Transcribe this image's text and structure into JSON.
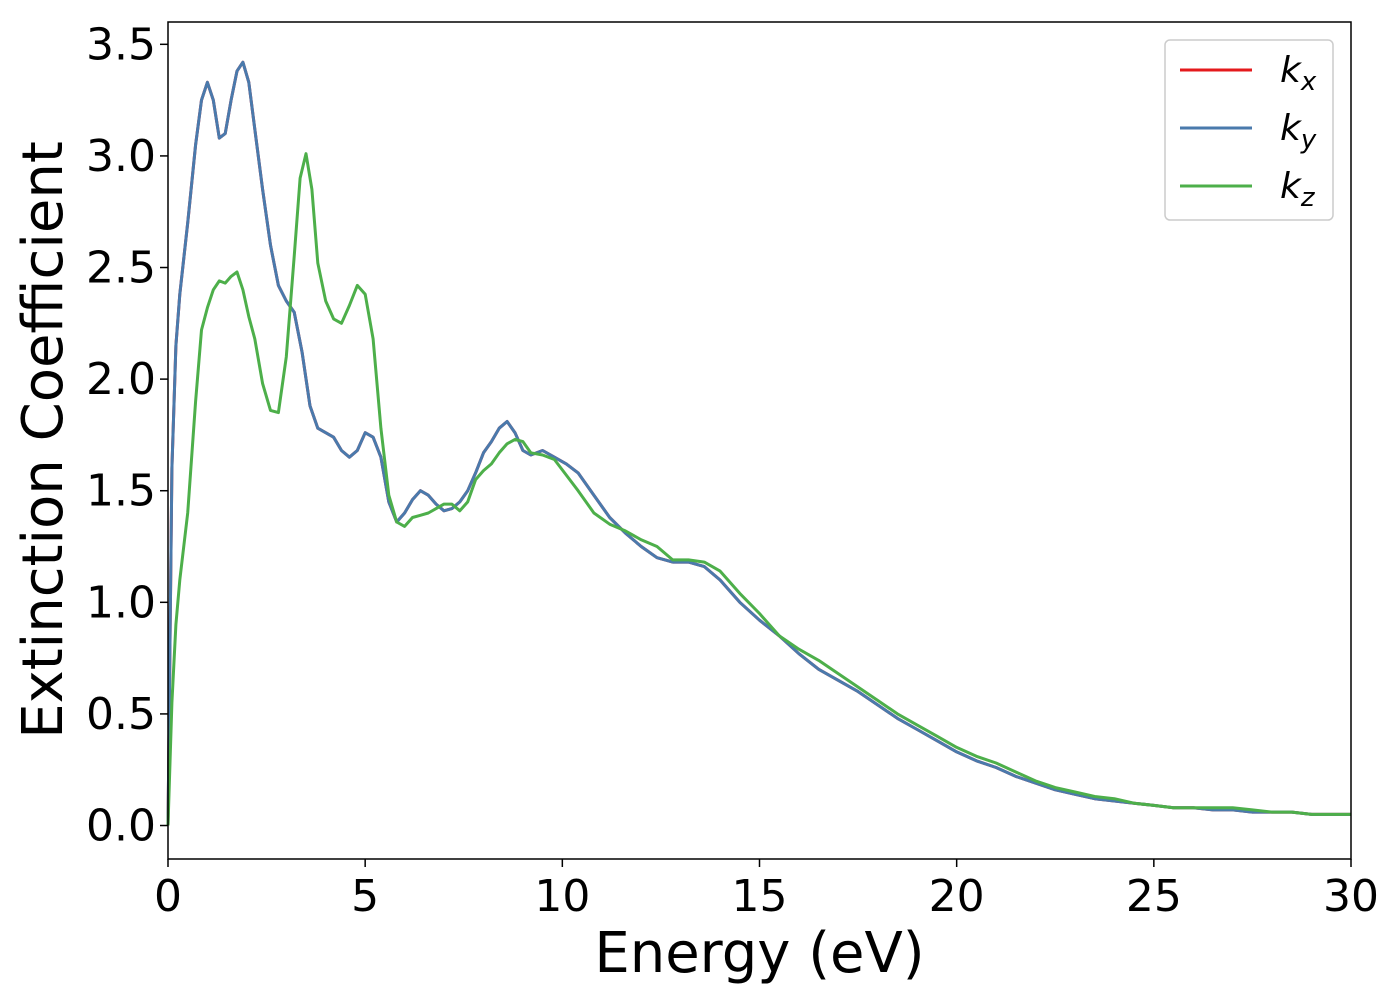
{
  "chart_data": {
    "type": "line",
    "title": "",
    "xlabel": "Energy (eV)",
    "ylabel": "Extinction Coefficient",
    "xlim": [
      0,
      30
    ],
    "ylim": [
      -0.15,
      3.6
    ],
    "xticks": [
      0,
      5,
      10,
      15,
      20,
      25,
      30
    ],
    "xtick_labels": [
      "0",
      "5",
      "10",
      "15",
      "20",
      "25",
      "30"
    ],
    "yticks": [
      0,
      0.5,
      1.0,
      1.5,
      2.0,
      2.5,
      3.0,
      3.5
    ],
    "ytick_labels": [
      "0.0",
      "0.5",
      "1.0",
      "1.5",
      "2.0",
      "2.5",
      "3.0",
      "3.5"
    ],
    "grid": false,
    "legend_position": "top-right",
    "series": [
      {
        "name": "k",
        "subscript": "x",
        "color": "#e41a1c",
        "x": [
          0,
          0.1,
          0.2,
          0.3,
          0.5,
          0.7,
          0.85,
          1.0,
          1.15,
          1.3,
          1.45,
          1.6,
          1.75,
          1.9,
          2.05,
          2.2,
          2.4,
          2.6,
          2.8,
          3.0,
          3.2,
          3.4,
          3.6,
          3.8,
          4.0,
          4.2,
          4.4,
          4.6,
          4.8,
          5.0,
          5.2,
          5.4,
          5.6,
          5.8,
          6.0,
          6.2,
          6.4,
          6.6,
          6.8,
          7.0,
          7.2,
          7.4,
          7.6,
          7.8,
          8.0,
          8.2,
          8.4,
          8.6,
          8.8,
          9.0,
          9.2,
          9.5,
          9.8,
          10.1,
          10.4,
          10.8,
          11.2,
          11.6,
          12.0,
          12.4,
          12.8,
          13.2,
          13.6,
          14.0,
          14.5,
          15.0,
          15.5,
          16.0,
          16.5,
          17.0,
          17.5,
          18.0,
          18.5,
          19.0,
          19.5,
          20.0,
          20.5,
          21.0,
          21.5,
          22.0,
          22.5,
          23.0,
          23.5,
          24.0,
          24.5,
          25.0,
          25.5,
          26.0,
          26.5,
          27.0,
          27.5,
          28.0,
          28.5,
          29.0,
          29.5,
          30.0
        ],
        "values": [
          0.0,
          1.6,
          2.15,
          2.38,
          2.7,
          3.05,
          3.25,
          3.33,
          3.25,
          3.08,
          3.1,
          3.25,
          3.38,
          3.42,
          3.33,
          3.12,
          2.85,
          2.6,
          2.42,
          2.35,
          2.3,
          2.12,
          1.88,
          1.78,
          1.76,
          1.74,
          1.68,
          1.65,
          1.68,
          1.76,
          1.74,
          1.65,
          1.45,
          1.36,
          1.4,
          1.46,
          1.5,
          1.48,
          1.44,
          1.41,
          1.42,
          1.45,
          1.5,
          1.58,
          1.67,
          1.72,
          1.78,
          1.81,
          1.76,
          1.68,
          1.66,
          1.68,
          1.65,
          1.62,
          1.58,
          1.48,
          1.38,
          1.31,
          1.25,
          1.2,
          1.18,
          1.18,
          1.16,
          1.1,
          1.0,
          0.92,
          0.85,
          0.77,
          0.7,
          0.65,
          0.6,
          0.54,
          0.48,
          0.43,
          0.38,
          0.33,
          0.29,
          0.26,
          0.22,
          0.19,
          0.16,
          0.14,
          0.12,
          0.11,
          0.1,
          0.09,
          0.08,
          0.08,
          0.07,
          0.07,
          0.06,
          0.06,
          0.06,
          0.05,
          0.05,
          0.05
        ]
      },
      {
        "name": "k",
        "subscript": "y",
        "color": "#4a7aac",
        "x": [
          0,
          0.1,
          0.2,
          0.3,
          0.5,
          0.7,
          0.85,
          1.0,
          1.15,
          1.3,
          1.45,
          1.6,
          1.75,
          1.9,
          2.05,
          2.2,
          2.4,
          2.6,
          2.8,
          3.0,
          3.2,
          3.4,
          3.6,
          3.8,
          4.0,
          4.2,
          4.4,
          4.6,
          4.8,
          5.0,
          5.2,
          5.4,
          5.6,
          5.8,
          6.0,
          6.2,
          6.4,
          6.6,
          6.8,
          7.0,
          7.2,
          7.4,
          7.6,
          7.8,
          8.0,
          8.2,
          8.4,
          8.6,
          8.8,
          9.0,
          9.2,
          9.5,
          9.8,
          10.1,
          10.4,
          10.8,
          11.2,
          11.6,
          12.0,
          12.4,
          12.8,
          13.2,
          13.6,
          14.0,
          14.5,
          15.0,
          15.5,
          16.0,
          16.5,
          17.0,
          17.5,
          18.0,
          18.5,
          19.0,
          19.5,
          20.0,
          20.5,
          21.0,
          21.5,
          22.0,
          22.5,
          23.0,
          23.5,
          24.0,
          24.5,
          25.0,
          25.5,
          26.0,
          26.5,
          27.0,
          27.5,
          28.0,
          28.5,
          29.0,
          29.5,
          30.0
        ],
        "values": [
          0.0,
          1.6,
          2.15,
          2.38,
          2.7,
          3.05,
          3.25,
          3.33,
          3.25,
          3.08,
          3.1,
          3.25,
          3.38,
          3.42,
          3.33,
          3.12,
          2.85,
          2.6,
          2.42,
          2.35,
          2.3,
          2.12,
          1.88,
          1.78,
          1.76,
          1.74,
          1.68,
          1.65,
          1.68,
          1.76,
          1.74,
          1.65,
          1.45,
          1.36,
          1.4,
          1.46,
          1.5,
          1.48,
          1.44,
          1.41,
          1.42,
          1.45,
          1.5,
          1.58,
          1.67,
          1.72,
          1.78,
          1.81,
          1.76,
          1.68,
          1.66,
          1.68,
          1.65,
          1.62,
          1.58,
          1.48,
          1.38,
          1.31,
          1.25,
          1.2,
          1.18,
          1.18,
          1.16,
          1.1,
          1.0,
          0.92,
          0.85,
          0.77,
          0.7,
          0.65,
          0.6,
          0.54,
          0.48,
          0.43,
          0.38,
          0.33,
          0.29,
          0.26,
          0.22,
          0.19,
          0.16,
          0.14,
          0.12,
          0.11,
          0.1,
          0.09,
          0.08,
          0.08,
          0.07,
          0.07,
          0.06,
          0.06,
          0.06,
          0.05,
          0.05,
          0.05
        ]
      },
      {
        "name": "k",
        "subscript": "z",
        "color": "#4daf4a",
        "x": [
          0,
          0.1,
          0.2,
          0.3,
          0.5,
          0.7,
          0.85,
          1.0,
          1.15,
          1.3,
          1.45,
          1.6,
          1.75,
          1.9,
          2.05,
          2.2,
          2.4,
          2.6,
          2.8,
          3.0,
          3.2,
          3.35,
          3.5,
          3.65,
          3.8,
          4.0,
          4.2,
          4.4,
          4.6,
          4.8,
          5.0,
          5.2,
          5.4,
          5.6,
          5.8,
          6.0,
          6.2,
          6.4,
          6.6,
          6.8,
          7.0,
          7.2,
          7.4,
          7.6,
          7.8,
          8.0,
          8.2,
          8.4,
          8.6,
          8.8,
          9.0,
          9.2,
          9.5,
          9.8,
          10.1,
          10.4,
          10.8,
          11.2,
          11.6,
          12.0,
          12.4,
          12.8,
          13.2,
          13.6,
          14.0,
          14.5,
          15.0,
          15.5,
          16.0,
          16.5,
          17.0,
          17.5,
          18.0,
          18.5,
          19.0,
          19.5,
          20.0,
          20.5,
          21.0,
          21.5,
          22.0,
          22.5,
          23.0,
          23.5,
          24.0,
          24.5,
          25.0,
          25.5,
          26.0,
          26.5,
          27.0,
          27.5,
          28.0,
          28.5,
          29.0,
          29.5,
          30.0
        ],
        "values": [
          0.0,
          0.55,
          0.9,
          1.1,
          1.4,
          1.9,
          2.22,
          2.32,
          2.4,
          2.44,
          2.43,
          2.46,
          2.48,
          2.4,
          2.28,
          2.18,
          1.98,
          1.86,
          1.85,
          2.1,
          2.55,
          2.9,
          3.01,
          2.85,
          2.52,
          2.35,
          2.27,
          2.25,
          2.33,
          2.42,
          2.38,
          2.18,
          1.78,
          1.48,
          1.36,
          1.34,
          1.38,
          1.39,
          1.4,
          1.42,
          1.44,
          1.44,
          1.41,
          1.45,
          1.55,
          1.59,
          1.62,
          1.67,
          1.71,
          1.73,
          1.72,
          1.67,
          1.66,
          1.64,
          1.57,
          1.5,
          1.4,
          1.35,
          1.32,
          1.28,
          1.25,
          1.19,
          1.19,
          1.18,
          1.14,
          1.04,
          0.95,
          0.85,
          0.79,
          0.74,
          0.68,
          0.62,
          0.56,
          0.5,
          0.45,
          0.4,
          0.35,
          0.31,
          0.28,
          0.24,
          0.2,
          0.17,
          0.15,
          0.13,
          0.12,
          0.1,
          0.09,
          0.08,
          0.08,
          0.08,
          0.08,
          0.07,
          0.06,
          0.06,
          0.05,
          0.05,
          0.05
        ]
      }
    ]
  }
}
